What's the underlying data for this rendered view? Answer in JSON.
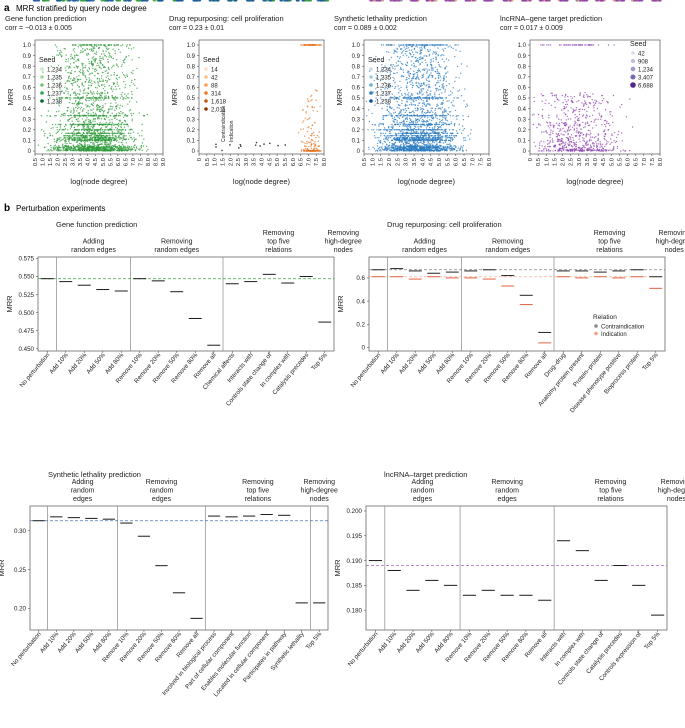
{
  "figure": {
    "section_a": {
      "letter": "a",
      "title": "MRR stratified by query node degree"
    },
    "section_b": {
      "letter": "b",
      "title": "Perturbation experiments"
    }
  },
  "colors": {
    "green": "#2e9a3a",
    "green_light": "#74c476",
    "orange": "#e6731e",
    "blue": "#2b7bc0",
    "blue_dark": "#1f5aa0",
    "purple": "#8e44ad",
    "purple_light": "#b39ddb",
    "grey": "#8a8a8a",
    "salmon": "#f0a080",
    "dark": "#333333"
  },
  "chart_data": [
    {
      "type": "scatter",
      "title": "Gene function prediction",
      "subtitle": "corr = −0.013 ± 0.005",
      "xlabel": "log(node degree)",
      "ylabel": "MRR",
      "xlim": [
        0.5,
        9.0
      ],
      "ylim": [
        0,
        1.0
      ],
      "xticks": [
        "0.5",
        "1.0",
        "1.5",
        "2.0",
        "2.5",
        "3.0",
        "3.5",
        "4.0",
        "4.5",
        "5.0",
        "5.5",
        "6.0",
        "6.5",
        "7.0",
        "7.5",
        "8.0",
        "8.5",
        "9.0"
      ],
      "yticks": [
        "0",
        "0.1",
        "0.2",
        "0.3",
        "0.4",
        "0.5",
        "0.6",
        "0.7",
        "0.8",
        "0.9",
        "1.0"
      ],
      "legend_title": "Seed",
      "legend": [
        "1,234",
        "1,235",
        "1,236",
        "1,237",
        "1,238"
      ],
      "legend_colors": [
        "#c7e9c0",
        "#a1d99b",
        "#74c476",
        "#31a354",
        "#006d2c"
      ],
      "color": "#2e9a3a",
      "x_range": [
        0.6,
        8.6
      ],
      "x_peak": 4.2,
      "density": 2400
    },
    {
      "type": "scatter",
      "title": "Drug repurposing: cell proliferation",
      "subtitle": "corr = 0.23 ± 0.01",
      "xlabel": "log(node degree)",
      "ylabel": "MRR",
      "xlim": [
        0.0,
        8.0
      ],
      "ylim": [
        0,
        1.0
      ],
      "xticks": [
        "0",
        "0.5",
        "1.0",
        "1.5",
        "2.0",
        "2.5",
        "3.0",
        "3.5",
        "4.0",
        "4.5",
        "5.0",
        "5.5",
        "6.0",
        "6.5",
        "7.0",
        "7.5",
        "8.0"
      ],
      "yticks": [
        "0",
        "0.1",
        "0.2",
        "0.3",
        "0.4",
        "0.5",
        "0.6",
        "0.7",
        "0.8",
        "0.9",
        "1.0"
      ],
      "legend_title": "Seed",
      "legend": [
        "14",
        "42",
        "88",
        "314",
        "1,618",
        "2,011"
      ],
      "legend_colors": [
        "#fde0c5",
        "#fdc38f",
        "#fd9f56",
        "#f07a28",
        "#c75c13",
        "#8c3a06"
      ],
      "side_labels": [
        "Contraindication",
        "Indication"
      ],
      "color": "#e6731e",
      "x_range": [
        6.2,
        7.9
      ],
      "x_peak": 7.3,
      "density": 260
    },
    {
      "type": "scatter",
      "title": "Synthetic lethality prediction",
      "subtitle": "corr = 0.089 ± 0.002",
      "xlabel": "log(node degree)",
      "ylabel": "MRR",
      "xlim": [
        0.5,
        8.0
      ],
      "ylim": [
        0,
        1.0
      ],
      "xticks": [
        "0.5",
        "1.0",
        "1.5",
        "2.0",
        "2.5",
        "3.0",
        "3.5",
        "4.0",
        "4.5",
        "5.0",
        "5.5",
        "6.0",
        "6.5",
        "7.0",
        "7.5",
        "8.0"
      ],
      "yticks": [
        "0",
        "0.1",
        "0.2",
        "0.3",
        "0.4",
        "0.5",
        "0.6",
        "0.7",
        "0.8",
        "0.9",
        "1.0"
      ],
      "legend_title": "Seed",
      "legend": [
        "1,234",
        "1,235",
        "1,236",
        "1,237",
        "1,238"
      ],
      "legend_colors": [
        "#c6dbef",
        "#9ecae1",
        "#6baed6",
        "#3182bd",
        "#08519c"
      ],
      "color": "#2b7bc0",
      "x_range": [
        0.6,
        7.6
      ],
      "x_peak": 3.5,
      "density": 2600
    },
    {
      "type": "scatter",
      "title": "lncRNA–gene target prediction",
      "subtitle": "corr = 0.017 ± 0.009",
      "xlabel": "log(node degree)",
      "ylabel": "MRR",
      "xlim": [
        0.0,
        8.0
      ],
      "ylim": [
        0,
        1.0
      ],
      "xticks": [
        "0",
        "0.5",
        "1.0",
        "1.5",
        "2.0",
        "2.5",
        "3.0",
        "3.5",
        "4.0",
        "4.5",
        "5.0",
        "5.5",
        "6.0",
        "6.5",
        "7.0",
        "7.5",
        "8.0"
      ],
      "yticks": [
        "0",
        "0.1",
        "0.2",
        "0.3",
        "0.4",
        "0.5",
        "0.6",
        "0.7",
        "0.8",
        "0.9",
        "1.0"
      ],
      "legend_title": "Seed",
      "legend": [
        "42",
        "908",
        "1,234",
        "3,407",
        "6,688"
      ],
      "legend_colors": [
        "#dadaeb",
        "#bcbddc",
        "#9e9ac8",
        "#756bb1",
        "#54278f"
      ],
      "color": "#8e44ad",
      "x_range": [
        0.1,
        7.8
      ],
      "x_peak": 2.0,
      "density": 700
    },
    {
      "type": "strip",
      "title": "Gene function prediction",
      "ylabel": "MRR",
      "ylim": [
        0.447,
        0.577
      ],
      "yticks": [
        0.45,
        0.475,
        0.5,
        0.525,
        0.55,
        0.575
      ],
      "ytick_labels": [
        "0.450",
        "0.475",
        "0.500",
        "0.525",
        "0.550",
        "0.575"
      ],
      "baseline": 0.547,
      "groups": [
        {
          "label": "Adding\nrandom edges",
          "start": 1,
          "end": 4
        },
        {
          "label": "Removing\nrandom edges",
          "start": 5,
          "end": 9
        },
        {
          "label": "Removing\ntop five\nrelations",
          "start": 10,
          "end": 15
        },
        {
          "label": "Removing\nhigh-degree\nnodes",
          "start": 16,
          "end": 16
        }
      ],
      "categories": [
        "No perturbation",
        "Add 10%",
        "Add 20%",
        "Add 50%",
        "Add 80%",
        "Remove 10%",
        "Remove 20%",
        "Remove 50%",
        "Remove 80%",
        "Remove all",
        "Chemical affects",
        "Interacts with",
        "Controls state change of",
        "In complex with",
        "Catalysis precedes",
        "Top 5%"
      ],
      "series": [
        {
          "name": "MRR",
          "color": "#2e9a3a",
          "means": [
            0.547,
            0.543,
            0.538,
            0.532,
            0.53,
            0.547,
            0.544,
            0.529,
            0.492,
            0.455,
            0.54,
            0.543,
            0.553,
            0.541,
            0.55,
            0.487
          ],
          "spread": [
            0.004,
            0.003,
            0.004,
            0.005,
            0.008,
            0.005,
            0.005,
            0.005,
            0.004,
            0.003,
            0.003,
            0.009,
            0.006,
            0.005,
            0.005,
            0.008
          ]
        }
      ]
    },
    {
      "type": "strip",
      "title": "Drug repurposing: cell proliferation",
      "ylabel": "MRR",
      "ylim": [
        -0.03,
        0.78
      ],
      "yticks": [
        0,
        0.2,
        0.4,
        0.6
      ],
      "ytick_labels": [
        "0",
        "0.2",
        "0.4",
        "0.6"
      ],
      "baseline": 0.67,
      "baseline2": 0.61,
      "groups": [
        {
          "label": "Adding\nrandom edges",
          "start": 1,
          "end": 4
        },
        {
          "label": "Removing\nrandom edges",
          "start": 5,
          "end": 9
        },
        {
          "label": "Removing\ntop five\nrelations",
          "start": 10,
          "end": 15
        },
        {
          "label": "Removing\nhigh-degree\nnodes",
          "start": 16,
          "end": 16
        }
      ],
      "categories": [
        "No perturbation",
        "Add 10%",
        "Add 20%",
        "Add 50%",
        "Add 80%",
        "Remove 10%",
        "Remove 20%",
        "Remove 50%",
        "Remove 80%",
        "Remove all",
        "Drug–drug",
        "Anatomy protein present",
        "Protein–protein",
        "Disease phenotype positive",
        "Bioprocess protein",
        "Top 5%"
      ],
      "legend_title": "Relation",
      "legend": [
        "Contraindication",
        "Indication"
      ],
      "series": [
        {
          "name": "Contraindication",
          "color": "#8a8a8a",
          "means": [
            0.67,
            0.68,
            0.66,
            0.64,
            0.65,
            0.66,
            0.67,
            0.62,
            0.45,
            0.13,
            0.66,
            0.66,
            0.65,
            0.66,
            0.67,
            0.61
          ],
          "spread": [
            0.03,
            0.03,
            0.04,
            0.04,
            0.04,
            0.03,
            0.03,
            0.05,
            0.05,
            0.02,
            0.03,
            0.03,
            0.03,
            0.03,
            0.03,
            0.05
          ]
        },
        {
          "name": "Indication",
          "color": "#f0a080",
          "means": [
            0.61,
            0.61,
            0.59,
            0.61,
            0.6,
            0.6,
            0.59,
            0.53,
            0.37,
            0.04,
            0.61,
            0.6,
            0.61,
            0.6,
            0.61,
            0.51
          ],
          "spread": [
            0.04,
            0.03,
            0.04,
            0.04,
            0.04,
            0.04,
            0.04,
            0.05,
            0.06,
            0.03,
            0.04,
            0.03,
            0.03,
            0.04,
            0.03,
            0.05
          ]
        }
      ]
    },
    {
      "type": "strip",
      "title": "Synthetic lethality prediction",
      "ylabel": "MRR",
      "ylim": [
        0.172,
        0.332
      ],
      "yticks": [
        0.2,
        0.25,
        0.3
      ],
      "ytick_labels": [
        "0.20",
        "0.25",
        "0.30"
      ],
      "baseline": 0.313,
      "groups": [
        {
          "label": "Adding\nrandom\nedges",
          "start": 1,
          "end": 4
        },
        {
          "label": "Removing\nrandom\nedges",
          "start": 5,
          "end": 9
        },
        {
          "label": "Removing\ntop five\nrelations",
          "start": 10,
          "end": 15
        },
        {
          "label": "Removing\nhigh-degree\nnodes",
          "start": 16,
          "end": 16
        }
      ],
      "categories": [
        "No perturbation",
        "Add 10%",
        "Add 20%",
        "Add 50%",
        "Add 80%",
        "Remove 10%",
        "Remove 20%",
        "Remove 50%",
        "Remove 80%",
        "Remove all",
        "Involved in biological process",
        "Part of cellular component",
        "Enables molecular function",
        "Located in cellular component",
        "Participates in pathway",
        "Synthetic lethality",
        "Top 5%"
      ],
      "series": [
        {
          "name": "MRR",
          "color": "#1f5aa0",
          "means": [
            0.313,
            0.318,
            0.317,
            0.316,
            0.315,
            0.31,
            0.293,
            0.255,
            0.22,
            0.187,
            0.319,
            0.318,
            0.319,
            0.321,
            0.32,
            0.207,
            0.207
          ],
          "spread": [
            0.001,
            0.002,
            0.003,
            0.002,
            0.003,
            0.002,
            0.002,
            0.002,
            0.001,
            0.001,
            0.002,
            0.001,
            0.002,
            0.002,
            0.002,
            0.002,
            0.002
          ]
        }
      ]
    },
    {
      "type": "strip",
      "title": "lncRNA–target prediction",
      "ylabel": "MRR",
      "ylim": [
        0.176,
        0.201
      ],
      "yticks": [
        0.18,
        0.185,
        0.19,
        0.195,
        0.2
      ],
      "ytick_labels": [
        "0.180",
        "0.185",
        "0.190",
        "0.195",
        "0.200"
      ],
      "baseline": 0.189,
      "groups": [
        {
          "label": "Adding\nrandom\nedges",
          "start": 1,
          "end": 4
        },
        {
          "label": "Removing\nrandom\nedges",
          "start": 5,
          "end": 9
        },
        {
          "label": "Removing\ntop five\nrelations",
          "start": 10,
          "end": 15
        },
        {
          "label": "Removing\nhigh-degree\nnodes",
          "start": 16,
          "end": 16
        }
      ],
      "categories": [
        "No perturbation",
        "Add 10%",
        "Add 20%",
        "Add 50%",
        "Add 80%",
        "Remove 10%",
        "Remove 20%",
        "Remove 50%",
        "Remove 80%",
        "Remove all",
        "Interacts with",
        "In complex with",
        "Controls state change of",
        "Catalysis precedes",
        "Controls expression of",
        "Top 5%"
      ],
      "series": [
        {
          "name": "MRR",
          "color": "#8e44ad",
          "means": [
            0.19,
            0.188,
            0.184,
            0.186,
            0.185,
            0.183,
            0.184,
            0.183,
            0.183,
            0.182,
            0.194,
            0.192,
            0.186,
            0.189,
            0.185,
            0.179
          ],
          "spread": [
            0.004,
            0.003,
            0.002,
            0.002,
            0.002,
            0.003,
            0.002,
            0.002,
            0.002,
            0.003,
            0.002,
            0.003,
            0.002,
            0.002,
            0.002,
            0.003
          ]
        }
      ]
    }
  ]
}
